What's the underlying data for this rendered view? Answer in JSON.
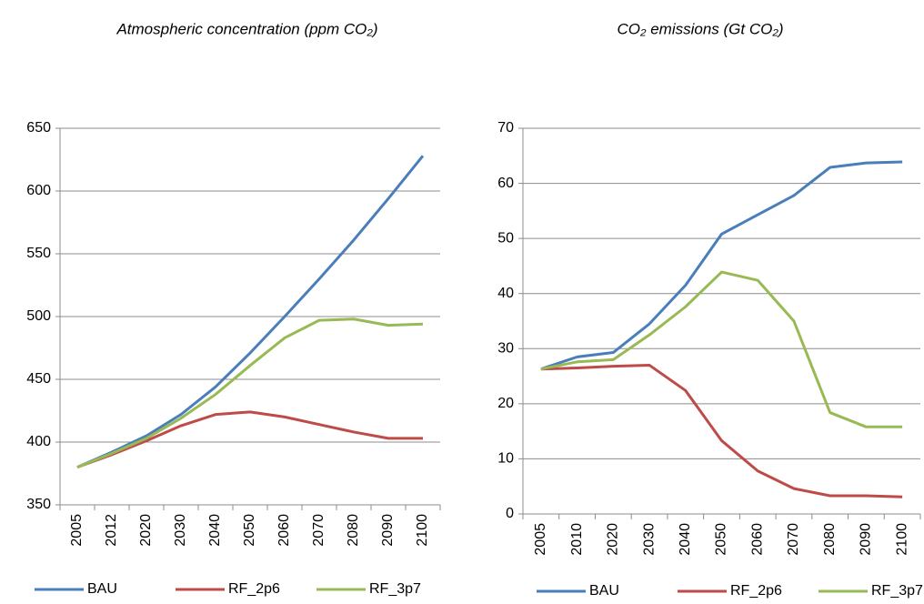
{
  "chart_data": [
    {
      "type": "line",
      "title": "Atmospheric concentration (ppm CO₂)",
      "categories": [
        "2005",
        "2012",
        "2020",
        "2030",
        "2040",
        "2050",
        "2060",
        "2070",
        "2080",
        "2090",
        "2100"
      ],
      "series": [
        {
          "name": "BAU",
          "color": "#4a7ebb",
          "values": [
            380,
            392,
            405,
            422,
            444,
            471,
            500,
            530,
            561,
            594,
            628
          ]
        },
        {
          "name": "RF_2p6",
          "color": "#be4b48",
          "values": [
            380,
            390,
            401,
            413,
            422,
            424,
            420,
            414,
            408,
            403,
            403
          ]
        },
        {
          "name": "RF_3p7",
          "color": "#98b954",
          "values": [
            380,
            391,
            403,
            419,
            438,
            461,
            483,
            497,
            498,
            493,
            494
          ]
        }
      ],
      "ylim": [
        350,
        650
      ],
      "yticks": [
        350,
        400,
        450,
        500,
        550,
        600,
        650
      ],
      "grid": true,
      "legend": "bottom"
    },
    {
      "type": "line",
      "title": "CO₂ emissions (Gt CO₂)",
      "categories": [
        "2005",
        "2010",
        "2020",
        "2030",
        "2040",
        "2050",
        "2060",
        "2070",
        "2080",
        "2090",
        "2100"
      ],
      "series": [
        {
          "name": "BAU",
          "color": "#4a7ebb",
          "values": [
            26.3,
            28.5,
            29.3,
            34.5,
            41.5,
            50.8,
            54.3,
            57.8,
            62.9,
            63.7,
            63.9
          ]
        },
        {
          "name": "RF_2p6",
          "color": "#be4b48",
          "values": [
            26.3,
            26.5,
            26.8,
            27,
            22.4,
            13.3,
            7.8,
            4.6,
            3.3,
            3.3,
            3.1
          ]
        },
        {
          "name": "RF_3p7",
          "color": "#98b954",
          "values": [
            26.3,
            27.6,
            28,
            32.5,
            37.6,
            43.9,
            42.4,
            35,
            18.4,
            15.8,
            15.8
          ]
        }
      ],
      "ylim": [
        0,
        70
      ],
      "yticks": [
        0,
        10,
        20,
        30,
        40,
        50,
        60,
        70
      ],
      "grid": true,
      "legend": "bottom"
    }
  ]
}
